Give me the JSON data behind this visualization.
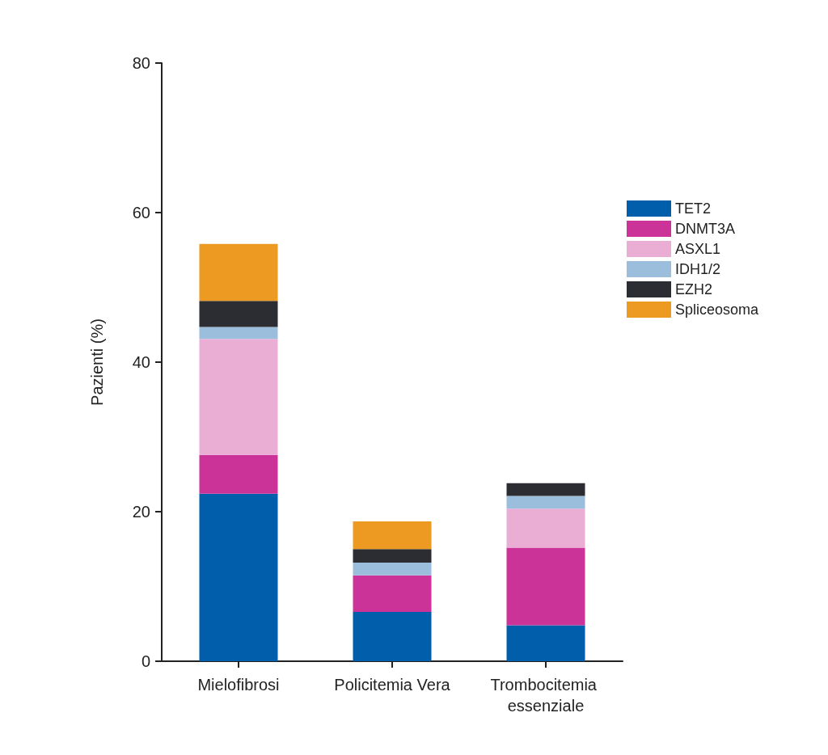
{
  "chart_data": {
    "type": "bar",
    "stacked": true,
    "ylabel": "Pazienti (%)",
    "categories": [
      "Mielofibrosi",
      "Policitemia Vera",
      "Trombocitemia essenziale"
    ],
    "series": [
      {
        "name": "TET2",
        "color": "#005eaa",
        "values": [
          22.4,
          6.6,
          4.8
        ]
      },
      {
        "name": "DNMT3A",
        "color": "#cc3399",
        "values": [
          5.2,
          4.9,
          10.4
        ]
      },
      {
        "name": "ASXL1",
        "color": "#eaaed5",
        "values": [
          15.5,
          0,
          5.2
        ]
      },
      {
        "name": "IDH1/2",
        "color": "#9bbedd",
        "values": [
          1.6,
          1.7,
          1.7
        ]
      },
      {
        "name": "EZH2",
        "color": "#2b2d33",
        "values": [
          3.5,
          1.8,
          1.7
        ]
      },
      {
        "name": "Spliceosoma",
        "color": "#ec9a22",
        "values": [
          7.6,
          3.7,
          0
        ]
      }
    ],
    "ylim": [
      0,
      80
    ],
    "yticks": [
      0,
      20,
      40,
      60,
      80
    ],
    "grid": false,
    "legend": "right"
  }
}
